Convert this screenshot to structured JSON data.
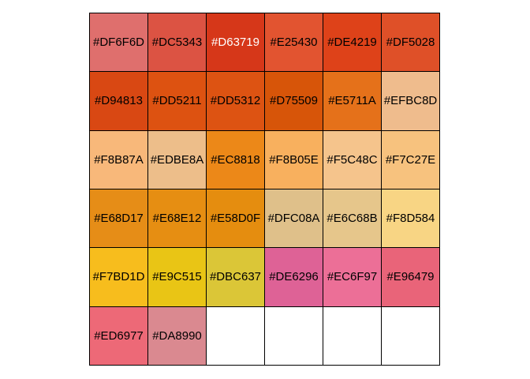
{
  "swatches": [
    {
      "label": "#DF6F6D",
      "color": "#DF6F6D"
    },
    {
      "label": "#DC5343",
      "color": "#DC5343"
    },
    {
      "label": "#D63719",
      "color": "#D63719",
      "text_color": "#FFFFFF"
    },
    {
      "label": "#E25430",
      "color": "#E25430"
    },
    {
      "label": "#DE4219",
      "color": "#DE4219"
    },
    {
      "label": "#DF5028",
      "color": "#DF5028"
    },
    {
      "label": "#D94813",
      "color": "#D94813"
    },
    {
      "label": "#DD5211",
      "color": "#DD5211"
    },
    {
      "label": "#DD5312",
      "color": "#DD5312"
    },
    {
      "label": "#D75509",
      "color": "#D75509"
    },
    {
      "label": "#E5711A",
      "color": "#E5711A"
    },
    {
      "label": "#EFBC8D",
      "color": "#EFBC8D"
    },
    {
      "label": "#F8B87A",
      "color": "#F8B87A"
    },
    {
      "label": "#EDBE8A",
      "color": "#EDBE8A"
    },
    {
      "label": "#EC8818",
      "color": "#EC8818"
    },
    {
      "label": "#F8B05E",
      "color": "#F8B05E"
    },
    {
      "label": "#F5C48C",
      "color": "#F5C48C"
    },
    {
      "label": "#F7C27E",
      "color": "#F7C27E"
    },
    {
      "label": "#E68D17",
      "color": "#E68D17"
    },
    {
      "label": "#E68E12",
      "color": "#E68E12"
    },
    {
      "label": "#E58D0F",
      "color": "#E58D0F"
    },
    {
      "label": "#DFC08A",
      "color": "#DFC08A"
    },
    {
      "label": "#E6C68B",
      "color": "#E6C68B"
    },
    {
      "label": "#F8D584",
      "color": "#F8D584"
    },
    {
      "label": "#F7BD1D",
      "color": "#F7BD1D"
    },
    {
      "label": "#E9C515",
      "color": "#E9C515"
    },
    {
      "label": "#DBC637",
      "color": "#DBC637"
    },
    {
      "label": "#DE6296",
      "color": "#DE6296"
    },
    {
      "label": "#EC6F97",
      "color": "#EC6F97"
    },
    {
      "label": "#E96479",
      "color": "#E96479"
    },
    {
      "label": "#ED6977",
      "color": "#ED6977"
    },
    {
      "label": "#DA8990",
      "color": "#DA8990"
    },
    {
      "label": "",
      "color": "#FFFFFF"
    },
    {
      "label": "",
      "color": "#FFFFFF"
    },
    {
      "label": "",
      "color": "#FFFFFF"
    },
    {
      "label": "",
      "color": "#FFFFFF"
    }
  ]
}
